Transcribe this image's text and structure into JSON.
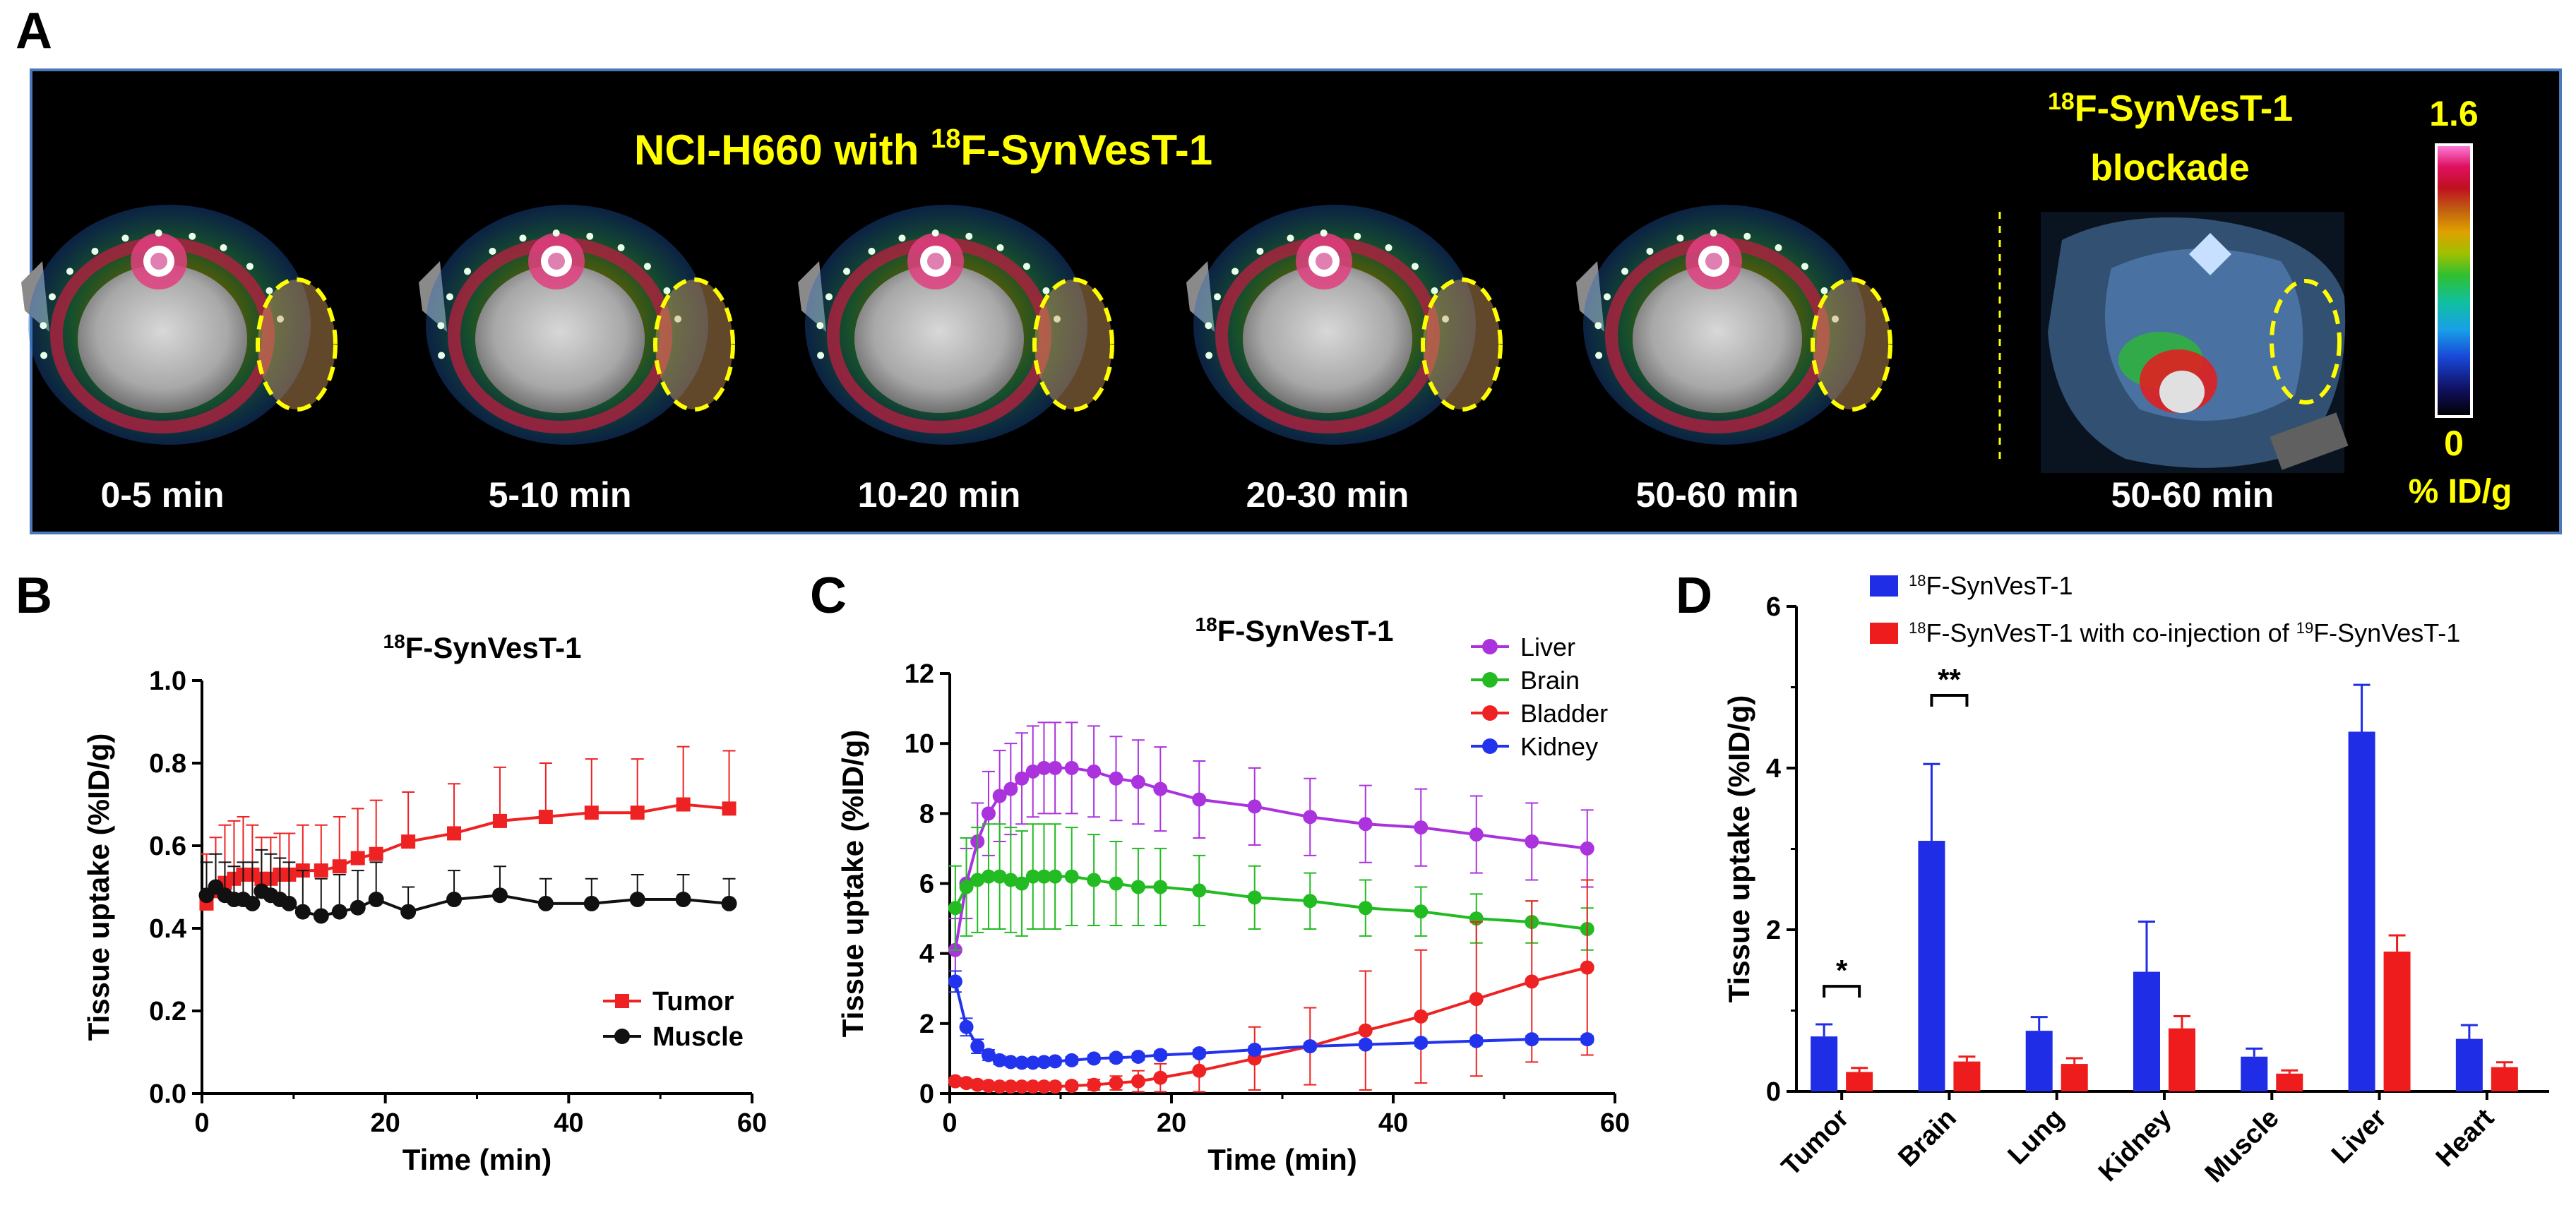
{
  "panel_letters": {
    "a": "A",
    "b": "B",
    "c": "C",
    "d": "D"
  },
  "panel_a": {
    "title_main": "NCI-H660 with ",
    "title_sup": "18",
    "title_tail": "F-SynVesT-1",
    "frames": [
      "0-5 min",
      "5-10 min",
      "10-20 min",
      "20-30 min",
      "50-60 min"
    ],
    "blockade_sup": "18",
    "blockade_line1": "F-SynVesT-1",
    "blockade_line2": "blockade",
    "blockade_frame": "50-60 min",
    "scale_max": "1.6",
    "scale_min": "0",
    "scale_unit": "% ID/g",
    "colors": {
      "text": "#ffff00",
      "roi": "#ffff00",
      "background": "#000000",
      "frame": "#4a78b8"
    }
  },
  "chart_data": [
    {
      "type": "line",
      "panel": "B",
      "title_sup": "18",
      "title": "F-SynVesT-1",
      "xlabel": "Time (min)",
      "ylabel": "Tissue uptake (%ID/g)",
      "xlim": [
        0,
        60
      ],
      "ylim": [
        0,
        1.0
      ],
      "xticks": [
        "0",
        "20",
        "40",
        "60"
      ],
      "yticks": [
        "0.0",
        "0.2",
        "0.4",
        "0.6",
        "0.8",
        "1.0"
      ],
      "legend_position": "bottom-right",
      "series": [
        {
          "name": "Tumor",
          "color": "#ee2222",
          "marker": "square",
          "x": [
            0.5,
            1.5,
            2.5,
            3.5,
            4.5,
            5.5,
            6.5,
            7.5,
            8.5,
            9.5,
            11,
            13,
            15,
            17,
            19,
            22.5,
            27.5,
            32.5,
            37.5,
            42.5,
            47.5,
            52.5,
            57.5
          ],
          "y": [
            0.46,
            0.49,
            0.51,
            0.52,
            0.53,
            0.53,
            0.52,
            0.52,
            0.53,
            0.53,
            0.54,
            0.54,
            0.55,
            0.57,
            0.58,
            0.61,
            0.63,
            0.66,
            0.67,
            0.68,
            0.68,
            0.7,
            0.69
          ],
          "err": [
            0.12,
            0.13,
            0.14,
            0.14,
            0.14,
            0.12,
            0.1,
            0.1,
            0.1,
            0.1,
            0.11,
            0.11,
            0.12,
            0.12,
            0.13,
            0.12,
            0.12,
            0.13,
            0.13,
            0.13,
            0.13,
            0.14,
            0.14
          ]
        },
        {
          "name": "Muscle",
          "color": "#111111",
          "marker": "circle",
          "x": [
            0.5,
            1.5,
            2.5,
            3.5,
            4.5,
            5.5,
            6.5,
            7.5,
            8.5,
            9.5,
            11,
            13,
            15,
            17,
            19,
            22.5,
            27.5,
            32.5,
            37.5,
            42.5,
            47.5,
            52.5,
            57.5
          ],
          "y": [
            0.48,
            0.5,
            0.48,
            0.47,
            0.47,
            0.46,
            0.49,
            0.48,
            0.47,
            0.46,
            0.44,
            0.43,
            0.44,
            0.45,
            0.47,
            0.44,
            0.47,
            0.48,
            0.46,
            0.46,
            0.47,
            0.47,
            0.46
          ],
          "err": [
            0.08,
            0.08,
            0.08,
            0.08,
            0.09,
            0.1,
            0.1,
            0.1,
            0.1,
            0.1,
            0.1,
            0.09,
            0.09,
            0.09,
            0.09,
            0.06,
            0.07,
            0.07,
            0.06,
            0.06,
            0.06,
            0.06,
            0.06
          ]
        }
      ]
    },
    {
      "type": "line",
      "panel": "C",
      "title_sup": "18",
      "title": "F-SynVesT-1",
      "xlabel": "Time (min)",
      "ylabel": "Tissue uptake (%ID/g)",
      "xlim": [
        0,
        60
      ],
      "ylim": [
        0,
        12
      ],
      "xticks": [
        "0",
        "20",
        "40",
        "60"
      ],
      "yticks": [
        "0",
        "2",
        "4",
        "6",
        "8",
        "10",
        "12"
      ],
      "legend_position": "top-right",
      "series": [
        {
          "name": "Liver",
          "color": "#aa33dd",
          "x": [
            0.5,
            1.5,
            2.5,
            3.5,
            4.5,
            5.5,
            6.5,
            7.5,
            8.5,
            9.5,
            11,
            13,
            15,
            17,
            19,
            22.5,
            27.5,
            32.5,
            37.5,
            42.5,
            47.5,
            52.5,
            57.5
          ],
          "y": [
            4.1,
            6.0,
            7.2,
            8.0,
            8.5,
            8.7,
            9.0,
            9.2,
            9.3,
            9.3,
            9.3,
            9.2,
            9.0,
            8.9,
            8.7,
            8.4,
            8.2,
            7.9,
            7.7,
            7.6,
            7.4,
            7.2,
            7.0
          ],
          "err": [
            0.9,
            1.0,
            1.1,
            1.2,
            1.3,
            1.3,
            1.3,
            1.3,
            1.3,
            1.3,
            1.3,
            1.3,
            1.2,
            1.2,
            1.2,
            1.1,
            1.1,
            1.1,
            1.1,
            1.1,
            1.1,
            1.1,
            1.1
          ]
        },
        {
          "name": "Brain",
          "color": "#22bb22",
          "x": [
            0.5,
            1.5,
            2.5,
            3.5,
            4.5,
            5.5,
            6.5,
            7.5,
            8.5,
            9.5,
            11,
            13,
            15,
            17,
            19,
            22.5,
            27.5,
            32.5,
            37.5,
            42.5,
            47.5,
            52.5,
            57.5
          ],
          "y": [
            5.3,
            5.9,
            6.1,
            6.2,
            6.2,
            6.1,
            6.0,
            6.2,
            6.2,
            6.2,
            6.2,
            6.1,
            6.0,
            5.9,
            5.9,
            5.8,
            5.6,
            5.5,
            5.3,
            5.2,
            5.0,
            4.9,
            4.7
          ],
          "err": [
            1.2,
            1.4,
            1.5,
            1.5,
            1.5,
            1.5,
            1.5,
            1.5,
            1.5,
            1.5,
            1.4,
            1.3,
            1.2,
            1.1,
            1.1,
            1.0,
            0.9,
            0.8,
            0.8,
            0.7,
            0.7,
            0.6,
            0.6
          ]
        },
        {
          "name": "Bladder",
          "color": "#ee2222",
          "x": [
            0.5,
            1.5,
            2.5,
            3.5,
            4.5,
            5.5,
            6.5,
            7.5,
            8.5,
            9.5,
            11,
            13,
            15,
            17,
            19,
            22.5,
            27.5,
            32.5,
            37.5,
            42.5,
            47.5,
            52.5,
            57.5
          ],
          "y": [
            0.35,
            0.3,
            0.25,
            0.22,
            0.2,
            0.2,
            0.2,
            0.2,
            0.2,
            0.2,
            0.22,
            0.25,
            0.3,
            0.35,
            0.45,
            0.65,
            1.0,
            1.35,
            1.8,
            2.2,
            2.7,
            3.2,
            3.6
          ],
          "err": [
            0.1,
            0.1,
            0.1,
            0.1,
            0.1,
            0.1,
            0.1,
            0.1,
            0.1,
            0.1,
            0.1,
            0.15,
            0.2,
            0.3,
            0.4,
            0.6,
            0.9,
            1.1,
            1.7,
            1.9,
            2.2,
            2.3,
            2.5
          ]
        },
        {
          "name": "Kidney",
          "color": "#2233ee",
          "x": [
            0.5,
            1.5,
            2.5,
            3.5,
            4.5,
            5.5,
            6.5,
            7.5,
            8.5,
            9.5,
            11,
            13,
            15,
            17,
            19,
            22.5,
            27.5,
            32.5,
            37.5,
            42.5,
            47.5,
            52.5,
            57.5
          ],
          "y": [
            3.2,
            1.9,
            1.35,
            1.1,
            0.95,
            0.9,
            0.88,
            0.88,
            0.9,
            0.92,
            0.95,
            1.0,
            1.02,
            1.05,
            1.1,
            1.15,
            1.25,
            1.35,
            1.4,
            1.45,
            1.5,
            1.55,
            1.55
          ],
          "err": [
            0.3,
            0.25,
            0.2,
            0.15,
            0.12,
            0.1,
            0.1,
            0.1,
            0.1,
            0.1,
            0.1,
            0.1,
            0.1,
            0.1,
            0.1,
            0.1,
            0.1,
            0.1,
            0.1,
            0.1,
            0.1,
            0.1,
            0.1
          ]
        }
      ]
    },
    {
      "type": "bar",
      "panel": "D",
      "ylabel": "Tissue uptake (%ID/g)",
      "ylim": [
        0,
        6
      ],
      "yticks": [
        "0",
        "2",
        "4",
        "6"
      ],
      "categories": [
        "Tumor",
        "Brain",
        "Lung",
        "Kidney",
        "Muscle",
        "Liver",
        "Heart"
      ],
      "legend_position": "top",
      "series": [
        {
          "name_sup": "18",
          "name": "F-SynVesT-1",
          "color": "#1f2de6",
          "values": [
            0.68,
            3.1,
            0.75,
            1.48,
            0.43,
            4.45,
            0.65
          ],
          "err": [
            0.15,
            0.95,
            0.17,
            0.62,
            0.1,
            0.58,
            0.17
          ]
        },
        {
          "name_sup": "18",
          "name": "F-SynVesT-1 with co-injection of ",
          "name_sup2": "19",
          "name_tail": "F-SynVesT-1",
          "color": "#ee1c1c",
          "values": [
            0.24,
            0.37,
            0.34,
            0.78,
            0.22,
            1.73,
            0.3
          ],
          "err": [
            0.05,
            0.06,
            0.07,
            0.15,
            0.04,
            0.2,
            0.06
          ]
        }
      ],
      "annotations": [
        {
          "category": "Tumor",
          "text": "*"
        },
        {
          "category": "Brain",
          "text": "**"
        }
      ]
    }
  ]
}
